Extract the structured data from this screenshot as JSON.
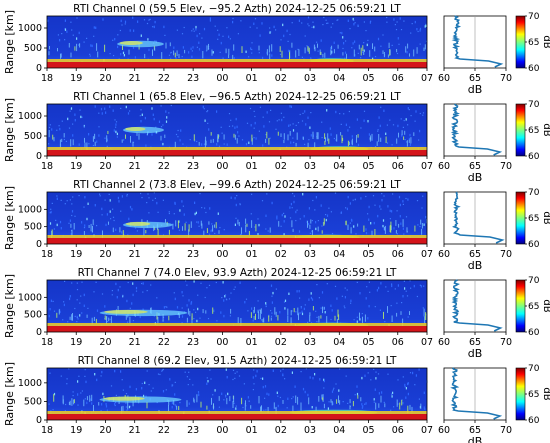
{
  "chart_data": [
    {
      "type": "heatmap",
      "title": "RTI  Channel 0 (59.5 Elev,  −95.2 Azth) 2024-12-25 06:59:21 LT",
      "ylabel": "Range [km]",
      "yticks": [
        "0",
        "500",
        "1000"
      ],
      "ylim": [
        0,
        1300
      ],
      "xticks": [
        "18",
        "19",
        "20",
        "21",
        "22",
        "23",
        "00",
        "01",
        "02",
        "03",
        "04",
        "05",
        "06",
        "07"
      ],
      "profile": {
        "xlabel": "dB",
        "xticks": [
          "60",
          "65",
          "70"
        ],
        "xlim": [
          60,
          70
        ],
        "peak_db": 69.2,
        "floor_db": 62.0
      },
      "colorbar": {
        "label": "dB",
        "ticks": [
          "60",
          "65",
          "70"
        ],
        "range": [
          60,
          70
        ]
      },
      "features": [
        {
          "label": "echo",
          "start_hour": 20.4,
          "end_hour": 22.0,
          "range_km": 600
        },
        {
          "label": "layer",
          "start_hour": 27.0,
          "end_hour": 28.5,
          "range_km": 200
        }
      ]
    },
    {
      "type": "heatmap",
      "title": "RTI  Channel 1 (65.8 Elev,  −96.5 Azth) 2024-12-25 06:59:21 LT",
      "ylabel": "Range [km]",
      "yticks": [
        "0",
        "500",
        "1000"
      ],
      "ylim": [
        0,
        1300
      ],
      "xticks": [
        "18",
        "19",
        "20",
        "21",
        "22",
        "23",
        "00",
        "01",
        "02",
        "03",
        "04",
        "05",
        "06",
        "07"
      ],
      "profile": {
        "xlabel": "dB",
        "xticks": [
          "60",
          "65",
          "70"
        ],
        "xlim": [
          60,
          70
        ],
        "peak_db": 69.0,
        "floor_db": 61.8
      },
      "colorbar": {
        "label": "dB",
        "ticks": [
          "60",
          "65",
          "70"
        ],
        "range": [
          60,
          70
        ]
      },
      "features": [
        {
          "label": "echo",
          "start_hour": 20.6,
          "end_hour": 22.0,
          "range_km": 650
        },
        {
          "label": "layer",
          "start_hour": 27.0,
          "end_hour": 29.0,
          "range_km": 200
        }
      ]
    },
    {
      "type": "heatmap",
      "title": "RTI  Channel 2 (73.8 Elev,  −99.6 Azth) 2024-12-25 06:59:21 LT",
      "ylabel": "Range [km]",
      "yticks": [
        "0",
        "500",
        "1000"
      ],
      "ylim": [
        0,
        1500
      ],
      "xticks": [
        "18",
        "19",
        "20",
        "21",
        "22",
        "23",
        "00",
        "01",
        "02",
        "03",
        "04",
        "05",
        "06",
        "07"
      ],
      "profile": {
        "xlabel": "dB",
        "xticks": [
          "60",
          "65",
          "70"
        ],
        "xlim": [
          60,
          70
        ],
        "peak_db": 69.4,
        "floor_db": 62.0
      },
      "colorbar": {
        "label": "dB",
        "ticks": [
          "60",
          "65",
          "70"
        ],
        "range": [
          60,
          70
        ]
      },
      "features": [
        {
          "label": "echo",
          "start_hour": 20.6,
          "end_hour": 22.3,
          "range_km": 550
        },
        {
          "label": "layer",
          "start_hour": 26.5,
          "end_hour": 28.7,
          "range_km": 220
        }
      ]
    },
    {
      "type": "heatmap",
      "title": "RTI  Channel 7 (74.0 Elev,  93.9 Azth) 2024-12-25 06:59:21 LT",
      "ylabel": "Range [km]",
      "yticks": [
        "0",
        "500",
        "1000"
      ],
      "ylim": [
        0,
        1500
      ],
      "xticks": [
        "18",
        "19",
        "20",
        "21",
        "22",
        "23",
        "00",
        "01",
        "02",
        "03",
        "04",
        "05",
        "06",
        "07"
      ],
      "profile": {
        "xlabel": "dB",
        "xticks": [
          "60",
          "65",
          "70"
        ],
        "xlim": [
          60,
          70
        ],
        "peak_db": 69.1,
        "floor_db": 61.9
      },
      "colorbar": {
        "label": "dB",
        "ticks": [
          "60",
          "65",
          "70"
        ],
        "range": [
          60,
          70
        ]
      },
      "features": [
        {
          "label": "echo",
          "start_hour": 19.8,
          "end_hour": 22.8,
          "range_km": 550
        },
        {
          "label": "layer",
          "start_hour": 26.5,
          "end_hour": 29.0,
          "range_km": 220
        }
      ]
    },
    {
      "type": "heatmap",
      "title": "RTI  Channel 8 (69.2 Elev,  91.5 Azth) 2024-12-25 06:59:21 LT",
      "ylabel": "Range [km]",
      "yticks": [
        "0",
        "500",
        "1000"
      ],
      "ylim": [
        0,
        1400
      ],
      "xticks": [
        "18",
        "19",
        "20",
        "21",
        "22",
        "23",
        "00",
        "01",
        "02",
        "03",
        "04",
        "05",
        "06",
        "07"
      ],
      "profile": {
        "xlabel": "dB",
        "xticks": [
          "60",
          "65",
          "70"
        ],
        "xlim": [
          60,
          70
        ],
        "peak_db": 69.0,
        "floor_db": 61.7
      },
      "colorbar": {
        "label": "dB",
        "ticks": [
          "60",
          "65",
          "70"
        ],
        "range": [
          60,
          70
        ]
      },
      "features": [
        {
          "label": "echo",
          "start_hour": 19.8,
          "end_hour": 22.6,
          "range_km": 550
        },
        {
          "label": "layer",
          "start_hour": 26.3,
          "end_hour": 29.3,
          "range_km": 230
        }
      ]
    }
  ],
  "colors": {
    "background_field": "#1a3fd6",
    "noise_light": "#3d78ff",
    "echo": "#6ed3ff",
    "echo_core": "#e8f050",
    "ground_red": "#d4141a",
    "ground_yellow": "#f5d020",
    "profile_line": "#1f77b4",
    "jet": [
      "#00007f",
      "#0000ff",
      "#007fff",
      "#00ffff",
      "#7fff7f",
      "#ffff00",
      "#ff7f00",
      "#ff0000",
      "#7f0000"
    ]
  }
}
